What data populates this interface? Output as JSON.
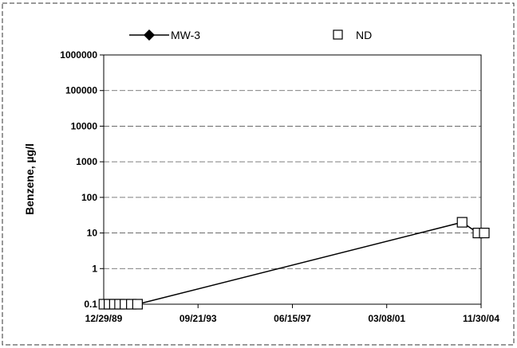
{
  "chart_data": {
    "type": "line",
    "title": "",
    "xlabel": "",
    "ylabel": "Benzene, µg/l",
    "y_scale": "log",
    "ylim": [
      0.1,
      1000000
    ],
    "xlim": [
      "12/29/89",
      "11/30/04"
    ],
    "x_tick_labels": [
      "12/29/89",
      "09/21/93",
      "06/15/97",
      "03/08/01",
      "11/30/04"
    ],
    "y_tick_labels": [
      "0.1",
      "1",
      "10",
      "100",
      "1000",
      "10000",
      "100000",
      "1000000"
    ],
    "grid": "horizontal",
    "legend_position": "top",
    "legend": [
      {
        "label": "MW-3",
        "marker": "diamond-filled",
        "line": true
      },
      {
        "label": "ND",
        "marker": "square-open",
        "line": false
      }
    ],
    "series": [
      {
        "name": "MW-3",
        "color": "#000000",
        "points": [
          {
            "x": "01/01/90",
            "y": 0.1,
            "nd": true
          },
          {
            "x": "03/15/90",
            "y": 0.1,
            "nd": true
          },
          {
            "x": "06/01/90",
            "y": 0.1,
            "nd": true
          },
          {
            "x": "08/15/90",
            "y": 0.1,
            "nd": true
          },
          {
            "x": "11/01/90",
            "y": 0.1,
            "nd": true
          },
          {
            "x": "02/01/91",
            "y": 0.1,
            "nd": true
          },
          {
            "x": "05/01/91",
            "y": 0.1,
            "nd": true
          },
          {
            "x": "03/01/04",
            "y": 20,
            "nd": true
          },
          {
            "x": "10/15/04",
            "y": 10,
            "nd": true
          },
          {
            "x": "01/15/05",
            "y": 10,
            "nd": true
          }
        ]
      }
    ]
  }
}
